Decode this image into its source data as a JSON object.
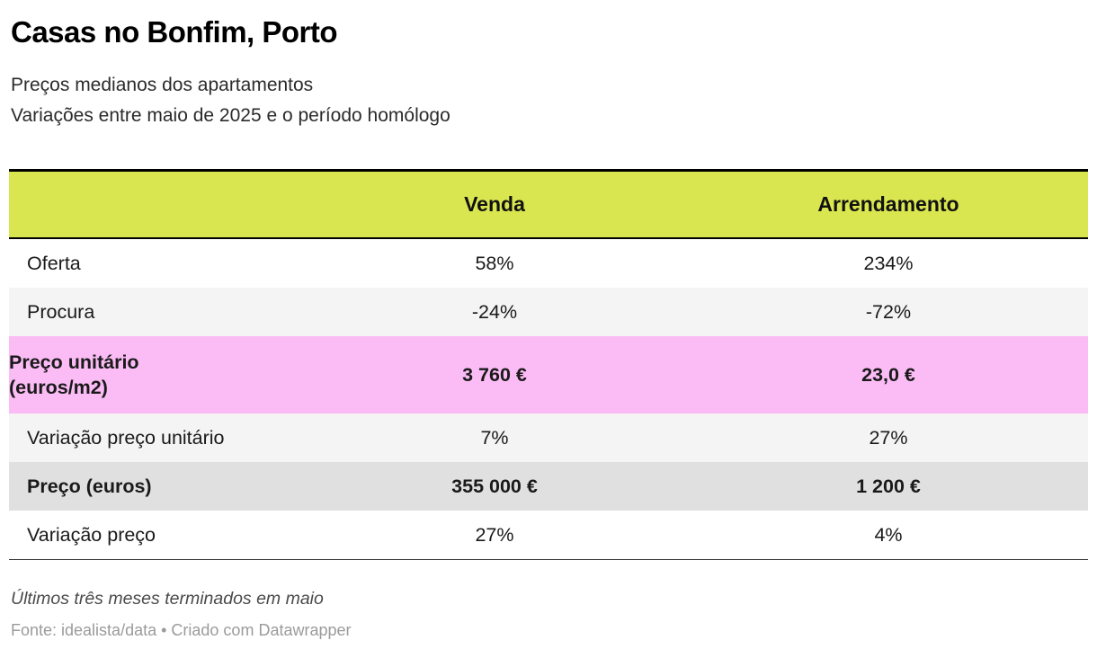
{
  "header": {
    "title": "Casas no Bonfim, Porto",
    "subtitle_line1": "Preços medianos dos apartamentos",
    "subtitle_line2": "Variações entre maio de 2025 e o período homólogo"
  },
  "chart_data": {
    "type": "table",
    "title": "Casas no Bonfim, Porto",
    "columns": [
      "",
      "Venda",
      "Arrendamento"
    ],
    "rows": [
      {
        "label": "Oferta",
        "venda": "58%",
        "arrendamento": "234%"
      },
      {
        "label": "Procura",
        "venda": "-24%",
        "arrendamento": "-72%"
      },
      {
        "label": "Preço unitário\n(euros/m2)",
        "venda": "3 760 €",
        "arrendamento": "23,0 €"
      },
      {
        "label": "Variação preço unitário",
        "venda": "7%",
        "arrendamento": "27%"
      },
      {
        "label": "Preço (euros)",
        "venda": "355 000 €",
        "arrendamento": "1 200 €"
      },
      {
        "label": "Variação preço",
        "venda": "27%",
        "arrendamento": "4%"
      }
    ],
    "layout_hints": {
      "header_bg": "#d9e64f",
      "pink_highlight_row_bg": "#fbbcf5",
      "gray_highlight_row_bg": "#e0e0e0",
      "alt_row_bg": "#f4f4f4",
      "top_border": "#000000"
    }
  },
  "footer": {
    "note": "Últimos três meses terminados em maio",
    "source": "Fonte: idealista/data • Criado com Datawrapper"
  }
}
